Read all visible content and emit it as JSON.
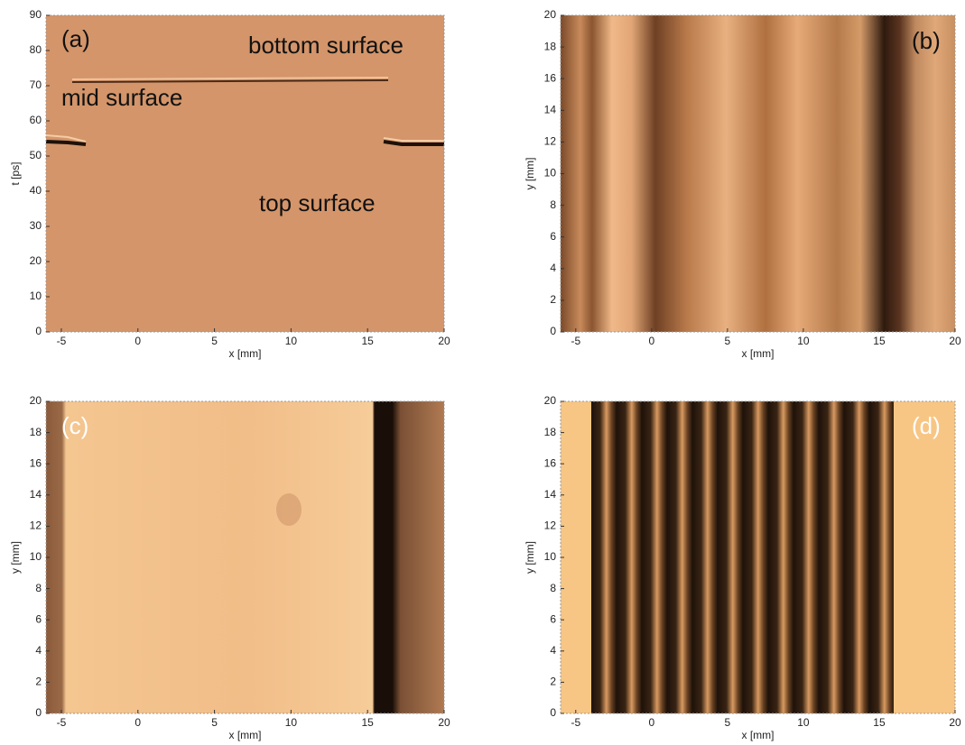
{
  "chart_data": [
    {
      "type": "image",
      "xlabel": "x [mm]",
      "ylabel": "t [ps]",
      "xlim": [
        -6,
        20
      ],
      "xticks": [
        -5,
        0,
        5,
        10,
        15,
        20
      ],
      "ylim": [
        0,
        90
      ],
      "yticks": [
        0,
        10,
        20,
        30,
        40,
        50,
        60,
        70,
        80,
        90
      ],
      "annotations": [
        "(a)",
        "bottom surface",
        "mid surface",
        "top surface"
      ],
      "label_color": "#111111"
    },
    {
      "type": "image",
      "xlabel": "x [mm]",
      "ylabel": "y [mm]",
      "xlim": [
        -6,
        20
      ],
      "xticks": [
        -5,
        0,
        5,
        10,
        15,
        20
      ],
      "ylim": [
        0,
        20
      ],
      "yticks": [
        0,
        2,
        4,
        6,
        8,
        10,
        12,
        14,
        16,
        18,
        20
      ],
      "annotations": [
        "(b)"
      ],
      "label_color": "#111111"
    },
    {
      "type": "image",
      "xlabel": "x [mm]",
      "ylabel": "y [mm]",
      "xlim": [
        -6,
        20
      ],
      "xticks": [
        -5,
        0,
        5,
        10,
        15,
        20
      ],
      "ylim": [
        0,
        20
      ],
      "yticks": [
        0,
        2,
        4,
        6,
        8,
        10,
        12,
        14,
        16,
        18,
        20
      ],
      "annotations": [
        "(c)"
      ],
      "label_color": "#ffffff"
    },
    {
      "type": "image",
      "xlabel": "x [mm]",
      "ylabel": "y [mm]",
      "xlim": [
        -6,
        20
      ],
      "xticks": [
        -5,
        0,
        5,
        10,
        15,
        20
      ],
      "ylim": [
        0,
        20
      ],
      "yticks": [
        0,
        2,
        4,
        6,
        8,
        10,
        12,
        14,
        16,
        18,
        20
      ],
      "annotations": [
        "(d)"
      ],
      "label_color": "#ffffff"
    }
  ]
}
